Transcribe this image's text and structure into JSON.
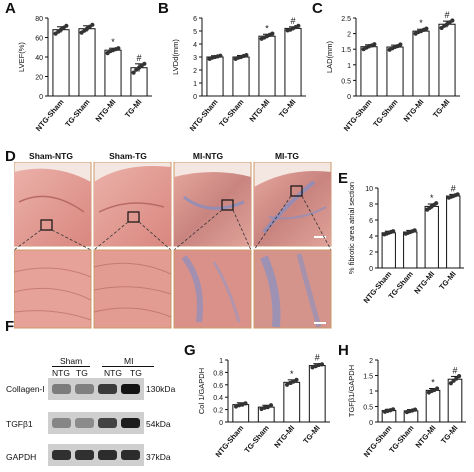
{
  "panel_labels": {
    "a": "A",
    "b": "B",
    "c": "C",
    "d": "D",
    "e": "E",
    "f": "F",
    "g": "G",
    "h": "H"
  },
  "histology": {
    "titles": [
      "Sham-NTG",
      "Sham-TG",
      "MI-NTG",
      "MI-TG"
    ],
    "colors": {
      "sham_tissue": "#e8a39a",
      "mi_tissue": "#d98b86",
      "fibrosis": "#7f8fc9",
      "border": "#c96"
    }
  },
  "western": {
    "group_sham": "Sham",
    "group_mi": "MI",
    "lanes": [
      "NTG",
      "TG",
      "NTG",
      "TG"
    ],
    "rows": [
      {
        "protein": "Collagen-I",
        "kda": "130kDa",
        "intensity": [
          0.4,
          0.38,
          0.75,
          0.95
        ]
      },
      {
        "protein": "TGFβ1",
        "kda": "54kDa",
        "intensity": [
          0.35,
          0.32,
          0.7,
          0.9
        ]
      },
      {
        "protein": "GAPDH",
        "kda": "37kDa",
        "intensity": [
          0.8,
          0.8,
          0.82,
          0.82
        ]
      }
    ]
  },
  "chart_data": [
    {
      "id": "A",
      "type": "bar",
      "categories": [
        "NTG-Sham",
        "TG-Sham",
        "NTG-MI",
        "TG-MI"
      ],
      "values": [
        68,
        69,
        47,
        29
      ],
      "points": [
        [
          64,
          66,
          68,
          70,
          72
        ],
        [
          65,
          67,
          69,
          71,
          73
        ],
        [
          44,
          46,
          47,
          48,
          49
        ],
        [
          24,
          27,
          29,
          31,
          33
        ]
      ],
      "errors": [
        3,
        3,
        2,
        4
      ],
      "ylabel": "LVEF(%)",
      "ylim": [
        0,
        80
      ],
      "yticks": [
        0,
        20,
        40,
        60,
        80
      ],
      "markers": [
        "",
        "",
        "*",
        "#"
      ],
      "colors": {
        "point": "#333333"
      }
    },
    {
      "id": "B",
      "type": "bar",
      "categories": [
        "NTG-Sham",
        "TG-Sham",
        "NTG-MI",
        "TG-MI"
      ],
      "values": [
        3.0,
        3.0,
        4.6,
        5.2
      ],
      "points": [
        [
          2.85,
          2.95,
          3.0,
          3.05,
          3.1
        ],
        [
          2.85,
          2.95,
          3.0,
          3.08,
          3.15
        ],
        [
          4.4,
          4.5,
          4.6,
          4.7,
          4.8
        ],
        [
          5.05,
          5.1,
          5.2,
          5.3,
          5.4
        ]
      ],
      "errors": [
        0.1,
        0.12,
        0.15,
        0.12
      ],
      "ylabel": "LVDd(mm)",
      "ylim": [
        0,
        6
      ],
      "yticks": [
        0,
        1,
        2,
        3,
        4,
        5,
        6
      ],
      "markers": [
        "",
        "",
        "*",
        "#"
      ],
      "colors": {
        "point": "#333333"
      }
    },
    {
      "id": "C",
      "type": "bar",
      "categories": [
        "NTG-Sham",
        "TG-Sham",
        "NTG-MI",
        "TG-MI"
      ],
      "values": [
        1.58,
        1.57,
        2.08,
        2.3
      ],
      "points": [
        [
          1.5,
          1.55,
          1.6,
          1.62,
          1.66
        ],
        [
          1.48,
          1.53,
          1.57,
          1.6,
          1.65
        ],
        [
          2.0,
          2.05,
          2.08,
          2.12,
          2.16
        ],
        [
          2.18,
          2.25,
          2.3,
          2.36,
          2.42
        ]
      ],
      "errors": [
        0.06,
        0.06,
        0.06,
        0.1
      ],
      "ylabel": "LAD(mm)",
      "ylim": [
        0,
        2.5
      ],
      "yticks": [
        0,
        0.5,
        1.0,
        1.5,
        2.0,
        2.5
      ],
      "markers": [
        "",
        "",
        "*",
        "#"
      ],
      "colors": {
        "point": "#333333"
      }
    },
    {
      "id": "E",
      "type": "bar",
      "categories": [
        "NTG-Sham",
        "TG-Sham",
        "NTG-MI",
        "TG-MI"
      ],
      "values": [
        4.4,
        4.5,
        7.7,
        9.0
      ],
      "points": [
        [
          4.2,
          4.3,
          4.4,
          4.5,
          4.6
        ],
        [
          4.3,
          4.4,
          4.5,
          4.6,
          4.7
        ],
        [
          7.3,
          7.5,
          7.7,
          7.9,
          8.1
        ],
        [
          8.8,
          8.9,
          9.0,
          9.1,
          9.2
        ]
      ],
      "errors": [
        0.2,
        0.2,
        0.3,
        0.2
      ],
      "ylabel": "% fibrotic area atrial section",
      "ylim": [
        0,
        10
      ],
      "yticks": [
        0,
        2,
        4,
        6,
        8,
        10
      ],
      "markers": [
        "",
        "",
        "*",
        "#"
      ],
      "colors": {
        "point": "#333333"
      }
    },
    {
      "id": "G",
      "type": "bar",
      "categories": [
        "NTG-Sham",
        "TG-Sham",
        "NTG-MI",
        "TG-MI"
      ],
      "values": [
        0.28,
        0.24,
        0.64,
        0.91
      ],
      "points": [
        [
          0.25,
          0.27,
          0.28,
          0.3
        ],
        [
          0.21,
          0.23,
          0.24,
          0.27
        ],
        [
          0.6,
          0.63,
          0.65,
          0.68
        ],
        [
          0.88,
          0.9,
          0.92,
          0.93
        ]
      ],
      "errors": [
        0.03,
        0.03,
        0.04,
        0.03
      ],
      "ylabel": "Col 1/GAPDH",
      "ylim": [
        0,
        1.0
      ],
      "yticks": [
        0.0,
        0.2,
        0.4,
        0.6,
        0.8,
        1.0
      ],
      "markers": [
        "",
        "",
        "*",
        "#"
      ],
      "colors": {
        "point": "#333333"
      }
    },
    {
      "id": "H",
      "type": "bar",
      "categories": [
        "NTG-Sham",
        "TG-Sham",
        "NTG-MI",
        "TG-MI"
      ],
      "values": [
        0.37,
        0.36,
        1.02,
        1.38
      ],
      "points": [
        [
          0.33,
          0.36,
          0.38,
          0.41
        ],
        [
          0.32,
          0.35,
          0.37,
          0.4
        ],
        [
          0.95,
          1.0,
          1.03,
          1.08
        ],
        [
          1.25,
          1.33,
          1.4,
          1.48
        ]
      ],
      "errors": [
        0.04,
        0.04,
        0.06,
        0.09
      ],
      "ylabel": "TGFβ1/GAPDH",
      "ylim": [
        0,
        2.0
      ],
      "yticks": [
        0.0,
        0.5,
        1.0,
        1.5,
        2.0
      ],
      "markers": [
        "",
        "",
        "*",
        "#"
      ],
      "colors": {
        "point": "#333333"
      }
    }
  ]
}
